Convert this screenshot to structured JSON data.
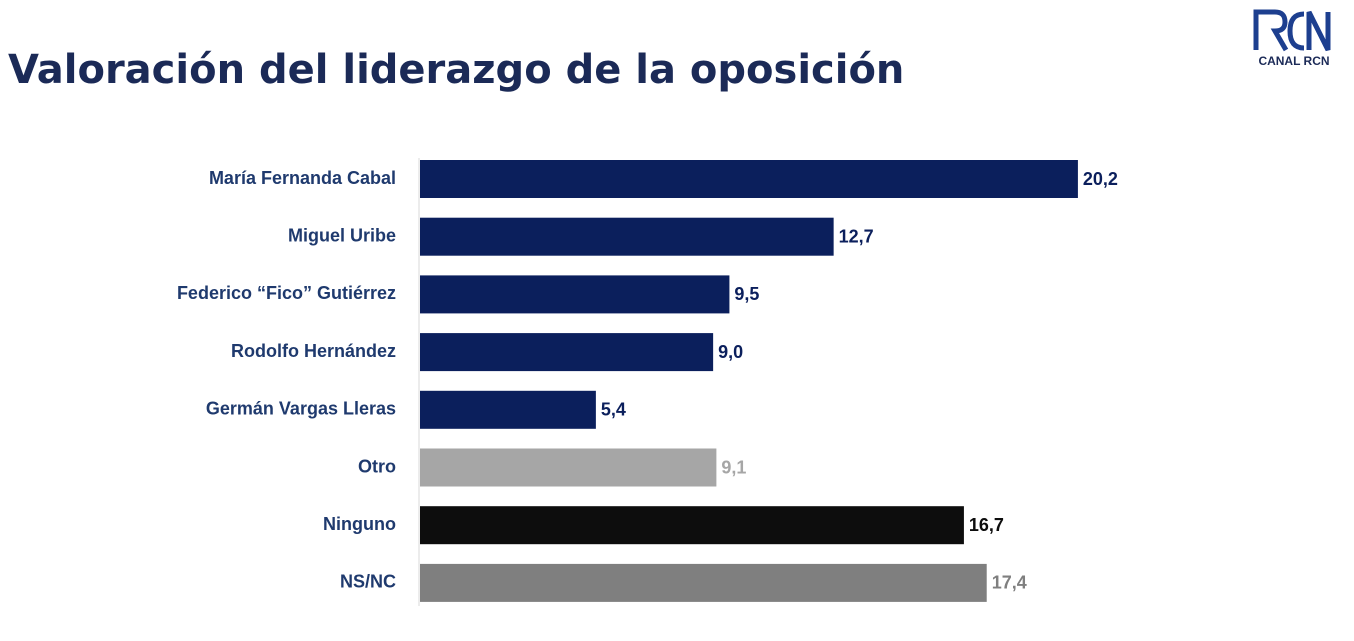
{
  "chart_data": {
    "type": "bar",
    "orientation": "horizontal",
    "title": "Valoración del liderazgo de la oposición",
    "logo": "CANAL RCN",
    "categories": [
      "María Fernanda Cabal",
      "Miguel Uribe",
      "Federico “Fico” Gutiérrez",
      "Rodolfo Hernández",
      "Germán Vargas Lleras",
      "Otro",
      "Ninguno",
      "NS/NC"
    ],
    "values": [
      20.2,
      12.7,
      9.5,
      9.0,
      5.4,
      9.1,
      16.7,
      17.4
    ],
    "value_labels": [
      "20,2",
      "12,7",
      "9,5",
      "9,0",
      "5,4",
      "9,1",
      "16,7",
      "17,4"
    ],
    "colors": [
      "#0b1f5c",
      "#0b1f5c",
      "#0b1f5c",
      "#0b1f5c",
      "#0b1f5c",
      "#a6a6a6",
      "#0d0d0d",
      "#7f7f7f"
    ],
    "label_colors": [
      "#0b1f5c",
      "#0b1f5c",
      "#0b1f5c",
      "#0b1f5c",
      "#0b1f5c",
      "#a6a6a6",
      "#0d0d0d",
      "#7f7f7f"
    ]
  }
}
